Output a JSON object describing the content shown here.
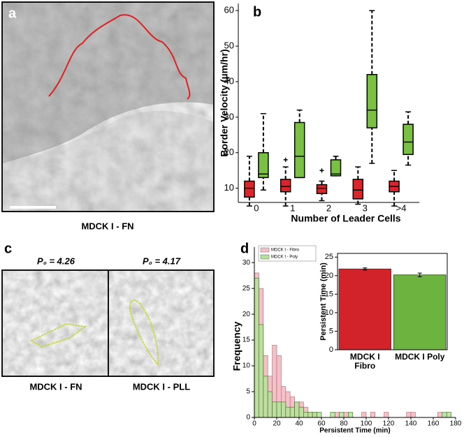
{
  "figure": {
    "panel_a": {
      "label": "a",
      "caption": "MDCK I - FN"
    },
    "panel_b": {
      "label": "b"
    },
    "panel_c": {
      "label": "c",
      "left": {
        "shape_index": "P₀ = 4.26",
        "caption": "MDCK I - FN"
      },
      "right": {
        "shape_index": "P₀ = 4.17",
        "caption": "MDCK I - PLL"
      }
    },
    "panel_d": {
      "label": "d"
    }
  },
  "chart_data": [
    {
      "type": "box",
      "ylabel": "Border Velocity (µm/hr)",
      "xlabel": "Number of Leader Cells",
      "categories": [
        "0",
        "1",
        "2",
        "3",
        ">4"
      ],
      "series": [
        {
          "color": "#d9252b",
          "low": [
            5,
            5,
            6.5,
            5.5,
            5
          ],
          "q1": [
            7.5,
            9,
            8.5,
            7,
            9
          ],
          "median": [
            10,
            10.5,
            10,
            9.5,
            10.5
          ],
          "q3": [
            12,
            12.5,
            11,
            12.5,
            12
          ],
          "high": [
            19,
            16,
            12,
            16,
            15
          ],
          "outliers": [
            [],
            [
              18
            ],
            [
              15
            ],
            [],
            []
          ]
        },
        {
          "color": "#7ac143",
          "low": [
            9.5,
            13,
            13.5,
            17,
            16.5
          ],
          "q1": [
            13,
            13,
            13.5,
            27,
            19.5
          ],
          "median": [
            14,
            19,
            14,
            32,
            23
          ],
          "q3": [
            20,
            28.5,
            18,
            42,
            28
          ],
          "high": [
            31,
            32,
            19,
            60,
            31.5
          ],
          "outliers": [
            [],
            [],
            [],
            [],
            []
          ]
        }
      ],
      "ylim": [
        6,
        62
      ],
      "yticks": [
        10,
        20,
        30,
        40,
        50,
        60
      ]
    },
    {
      "type": "histogram",
      "ylabel": "Frequency",
      "xlabel": "Persistent Time (min)",
      "bins": [
        0,
        4,
        8,
        12,
        16,
        20,
        24,
        28,
        32,
        36,
        40,
        44,
        48,
        52,
        56,
        60,
        64,
        68,
        72,
        76,
        80,
        84,
        88,
        92,
        96,
        100,
        104,
        108,
        112,
        116,
        120,
        124,
        128,
        132,
        136,
        140,
        144,
        148,
        152,
        156,
        160,
        164,
        168,
        172,
        176,
        180
      ],
      "series": [
        {
          "name": "MDCK I - Fibro",
          "color": "#f5c0c8",
          "values": [
            28,
            25,
            12,
            8,
            14,
            12,
            6,
            5,
            4,
            3,
            3,
            2,
            1,
            1,
            0,
            0,
            0,
            0,
            1,
            0,
            1,
            0,
            0,
            0,
            1,
            0,
            1,
            0,
            0,
            1,
            0,
            0,
            0,
            0,
            1,
            1,
            0,
            0,
            0,
            0,
            0,
            1,
            0,
            0,
            0
          ]
        },
        {
          "name": "MDCK I - Poly",
          "color": "#b5e09a",
          "values": [
            27,
            18,
            8,
            5,
            3,
            3,
            3,
            2,
            2,
            3,
            2,
            1,
            1,
            1,
            1,
            0,
            0,
            1,
            0,
            1,
            0,
            1,
            0,
            0,
            0,
            0,
            0,
            0,
            0,
            0,
            0,
            0,
            0,
            0,
            0,
            0,
            0,
            0,
            0,
            0,
            0,
            0,
            1,
            1,
            0
          ]
        }
      ],
      "xlim": [
        0,
        180
      ],
      "xticks": [
        0,
        20,
        40,
        60,
        80,
        100,
        120,
        140,
        160,
        180
      ],
      "ylim": [
        0,
        33
      ],
      "yticks": [
        0,
        5,
        10,
        15,
        20,
        25,
        30
      ],
      "legend": "upper left"
    },
    {
      "type": "bar",
      "ylabel": "Persistent Time (min)",
      "categories": [
        "MDCK I Fibro",
        "MDCK I Poly"
      ],
      "values": [
        21.8,
        20.2
      ],
      "errors": [
        0.3,
        0.5
      ],
      "colors": [
        "#d2232a",
        "#6db33f"
      ],
      "ylim": [
        0,
        26
      ],
      "yticks": [
        0,
        5,
        10,
        15,
        20,
        25
      ]
    }
  ]
}
